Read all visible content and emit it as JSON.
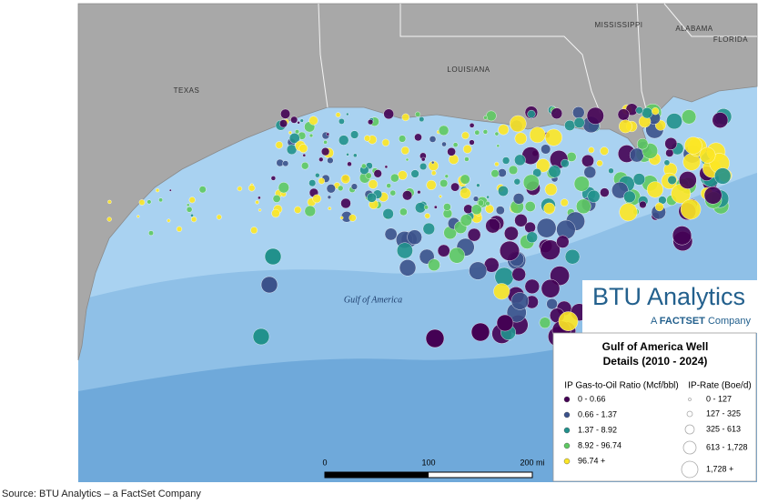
{
  "map": {
    "states": [
      "TEXAS",
      "LOUISIANA",
      "MISSISSIPPI",
      "ALABAMA",
      "FLORIDA"
    ],
    "water_label": "Gulf of America",
    "scale_bar": [
      "0",
      "100",
      "200 mi"
    ]
  },
  "logo": {
    "name": "BTU Analytics",
    "tagline_prefix": "A ",
    "tagline_brand": "FACTSET",
    "tagline_suffix": " Company"
  },
  "legend": {
    "title": "Gulf of America Well Details (2010 - 2024)",
    "color_title": "IP Gas-to-Oil Ratio (Mcf/bbl)",
    "color_classes": [
      {
        "label": "0 - 0.66",
        "color": "#440154"
      },
      {
        "label": "0.66 - 1.37",
        "color": "#3b528b"
      },
      {
        "label": "1.37 - 8.92",
        "color": "#21918c"
      },
      {
        "label": "8.92 - 96.74",
        "color": "#5ec962"
      },
      {
        "label": "96.74 +",
        "color": "#fde725"
      }
    ],
    "size_title": "IP-Rate (Boe/d)",
    "size_classes": [
      "0 - 127",
      "127 - 325",
      "325 - 613",
      "613 - 1,728",
      "1,728 +"
    ]
  },
  "source": "Source: BTU Analytics – a FactSet Company"
}
